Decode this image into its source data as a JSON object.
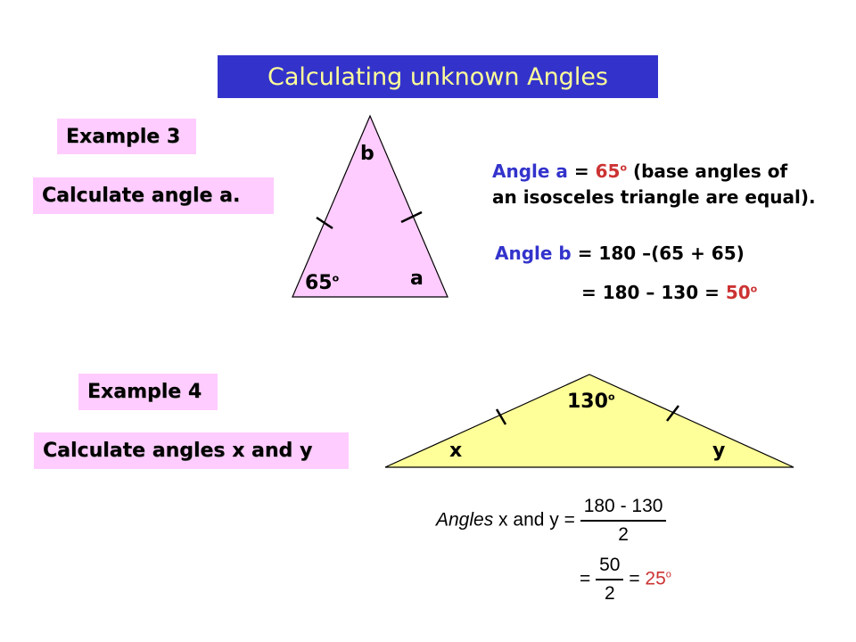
{
  "title": "Calculating unknown Angles",
  "example3": {
    "heading": "Example 3",
    "task": "Calculate angle a.",
    "labels": {
      "top": "b",
      "base_left": "65",
      "base_left_sup": "o",
      "base_right": "a"
    },
    "solution": {
      "line1_label": "Angle a",
      "line1_eq": " = ",
      "line1_value": "65",
      "line1_value_sup": "o",
      "line1_rest": " (base angles of",
      "line2": "an isosceles triangle are equal).",
      "line3_label": "Angle b",
      "line3_eq": " = 180 –(65 + 65)",
      "line4_eq": "= 180 – 130 = ",
      "line4_value": "50",
      "line4_value_sup": "o"
    }
  },
  "example4": {
    "heading": "Example 4",
    "task": "Calculate angles x and y",
    "labels": {
      "apex": "130",
      "apex_sup": "o",
      "left": "x",
      "right": "y"
    },
    "solution": {
      "lhs_italic": "Angles",
      "lhs_rest": " x and y = ",
      "frac1_num": "180 - 130",
      "frac1_den": "2",
      "eq2": "=",
      "frac2_num": "50",
      "frac2_den": "2",
      "eq3": " = ",
      "result": "25",
      "result_sup": "o"
    }
  },
  "colors": {
    "title_bg": "#3333cc",
    "title_text": "#ffff99",
    "box_pink": "#ffccff",
    "tri1_fill": "#ffccff",
    "tri2_fill": "#ffff99",
    "accent_blue": "#3333cc",
    "accent_red": "#cc3333"
  }
}
